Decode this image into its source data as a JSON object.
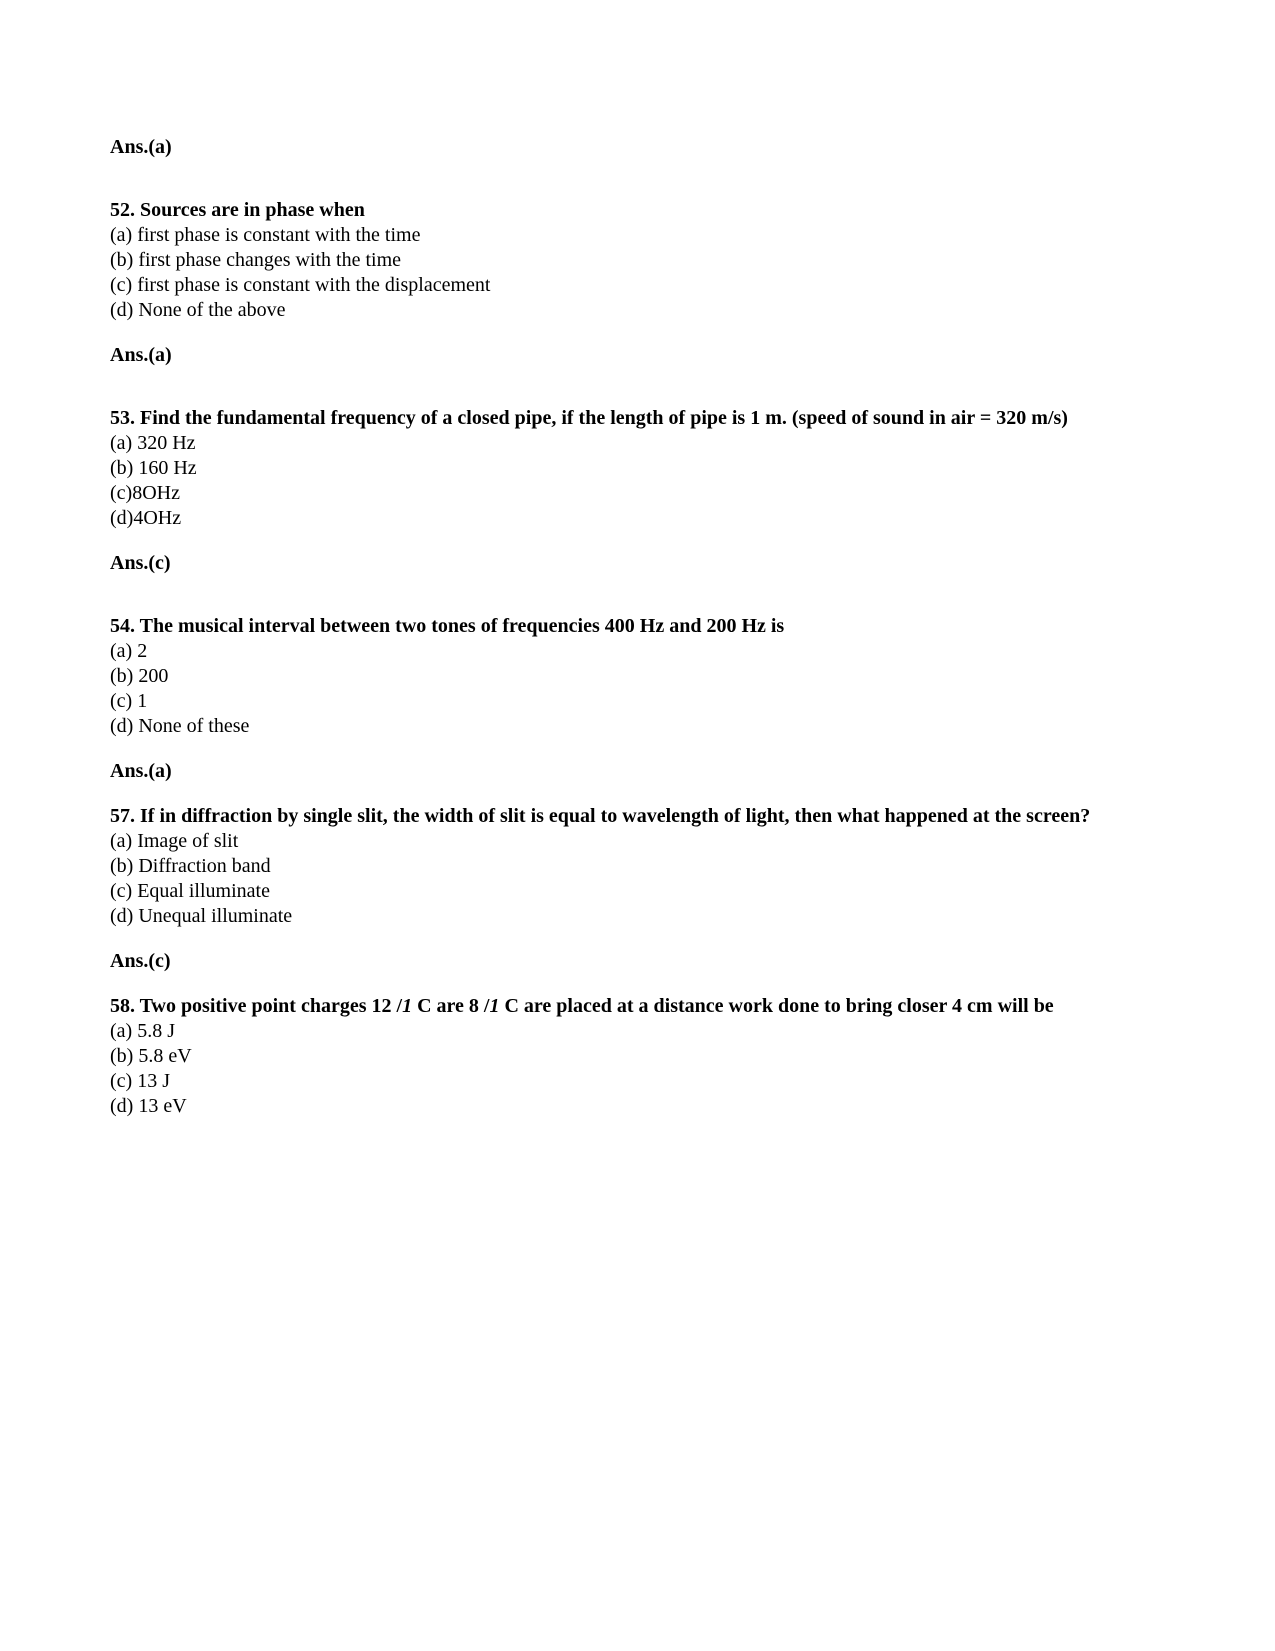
{
  "prev_answer": "Ans.(a)",
  "questions": [
    {
      "stem": "52. Sources are in phase when",
      "options": [
        "(a) first phase is constant with the time",
        "(b) first phase changes with the time",
        "(c) first phase is constant with the displacement",
        "(d) None of the above"
      ],
      "answer": "Ans.(a)"
    },
    {
      "stem": "53. Find the fundamental frequency of a closed pipe, if the length of pipe is 1 m. (speed of sound in air = 320 m/s)",
      "options": [
        "(a) 320 Hz",
        "(b) 160 Hz",
        "(c)8OHz",
        "(d)4OHz"
      ],
      "answer": "Ans.(c)"
    },
    {
      "stem": "54. The musical interval between two tones of frequencies 400 Hz and 200 Hz is",
      "options": [
        "(a) 2",
        "(b) 200",
        "(c) 1",
        "(d) None of these"
      ],
      "answer": "Ans.(a)"
    },
    {
      "stem": "57. If in diffraction by single slit, the width of slit is equal to wavelength of light, then what happened at the screen?",
      "options": [
        "(a) Image of slit",
        "(b) Diffraction band",
        "(c) Equal illuminate",
        "(d) Unequal illuminate"
      ],
      "answer": "Ans.(c)"
    },
    {
      "stem_parts": [
        "58. Two positive point charges 12 /",
        "1",
        " C are 8 /",
        "1",
        " C are placed at a distance work done to bring closer 4 cm will be"
      ],
      "options": [
        "(a) 5.8 J",
        "(b) 5.8 eV",
        "(c) 13 J",
        "(d) 13 eV"
      ]
    }
  ]
}
